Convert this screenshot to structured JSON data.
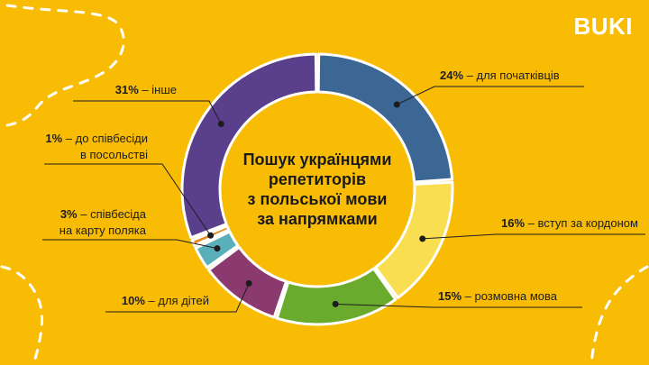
{
  "brand": {
    "logo_text": "BUKI"
  },
  "chart_data": {
    "type": "pie",
    "variant": "donut",
    "title_lines": [
      "Пошук українцями",
      "репетиторів",
      "з польської мови",
      "за напрямками"
    ],
    "slices": [
      {
        "label_lines": [
          "для початківців"
        ],
        "value": 24,
        "value_text": "24%",
        "color": "#3C6694"
      },
      {
        "label_lines": [
          "вступ за кордоном"
        ],
        "value": 16,
        "value_text": "16%",
        "color": "#F9DE52"
      },
      {
        "label_lines": [
          "розмовна мова"
        ],
        "value": 15,
        "value_text": "15%",
        "color": "#6AAB2E"
      },
      {
        "label_lines": [
          "для дітей"
        ],
        "value": 10,
        "value_text": "10%",
        "color": "#8A3A6E"
      },
      {
        "label_lines": [
          "співбесіда",
          "на карту поляка"
        ],
        "value": 3,
        "value_text": "3%",
        "color": "#5AB0BA"
      },
      {
        "label_lines": [
          "до співбесіди",
          "в посольстві"
        ],
        "value": 1,
        "value_text": "1%",
        "color": "#E48A1E"
      },
      {
        "label_lines": [
          "інше"
        ],
        "value": 31,
        "value_text": "31%",
        "color": "#5A3F8D"
      }
    ]
  }
}
